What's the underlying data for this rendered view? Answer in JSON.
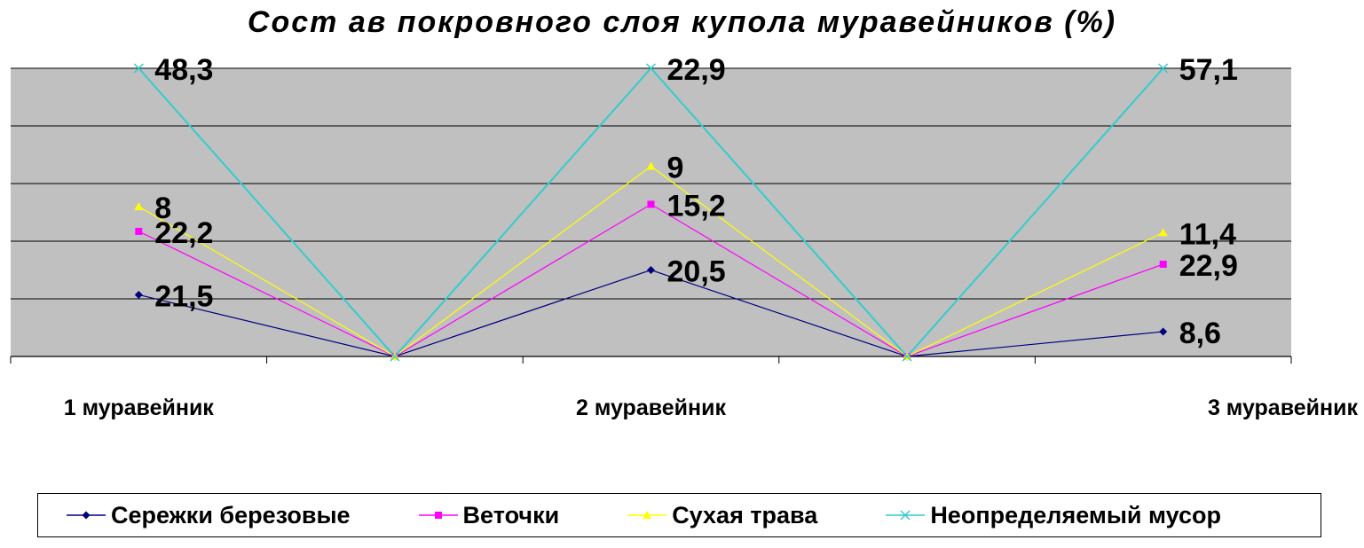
{
  "chart_data": {
    "type": "line",
    "title": "Сост ав покровного слоя купола муравейников (%)",
    "categories": [
      "1 муравейник",
      "",
      "2 муравейник",
      "",
      "3 муравейник"
    ],
    "ylim": [
      0,
      5
    ],
    "grid": true,
    "legend_position": "bottom",
    "series": [
      {
        "name": "Сережки березовые",
        "color": "#000080",
        "marker": "diamond",
        "values": [
          1.07,
          0,
          1.5,
          0,
          0.43
        ],
        "labels": [
          "21,5",
          "",
          "20,5",
          "",
          "8,6"
        ]
      },
      {
        "name": "Веточки",
        "color": "#ff00ff",
        "marker": "square",
        "values": [
          2.17,
          0,
          2.64,
          0,
          1.6
        ],
        "labels": [
          "22,2",
          "",
          "15,2",
          "",
          "22,9"
        ]
      },
      {
        "name": "Сухая трава",
        "color": "#ffff00",
        "marker": "triangle",
        "values": [
          2.6,
          0,
          3.3,
          0,
          2.15
        ],
        "labels": [
          "8",
          "",
          "9",
          "",
          "11,4"
        ]
      },
      {
        "name": "Неопределяемый мусор",
        "color": "#33cccc",
        "marker": "x",
        "values": [
          5,
          0,
          5,
          0,
          5
        ],
        "labels": [
          "48,3",
          "",
          "22,9",
          "",
          "57,1"
        ]
      }
    ]
  }
}
